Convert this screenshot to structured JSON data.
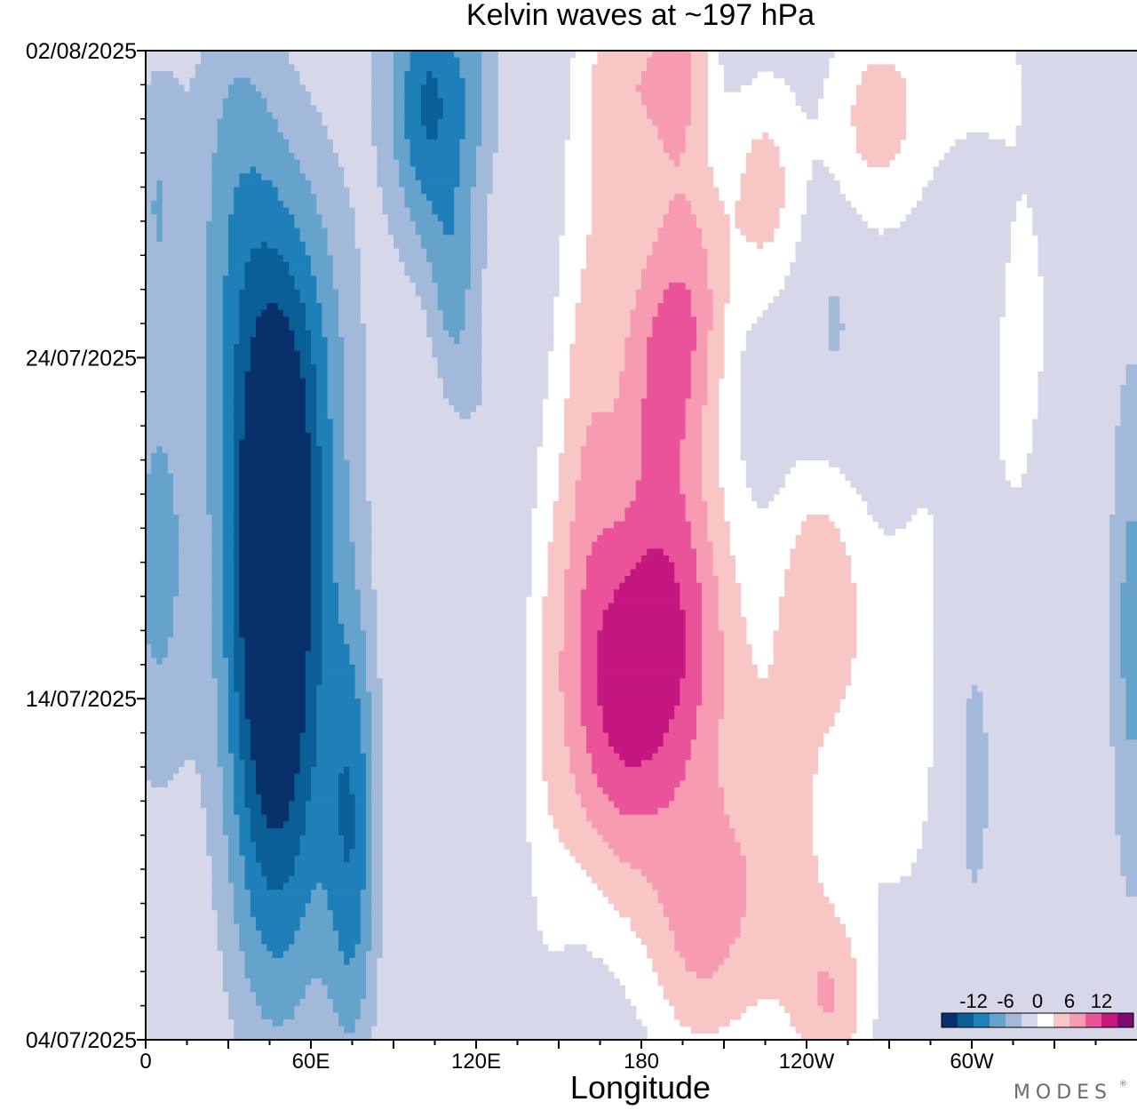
{
  "chart_data": {
    "type": "heatmap",
    "title": "Kelvin waves at ~197 hPa",
    "xlabel": "Longitude",
    "ylabel": "",
    "x_ticks": [
      "0",
      "60E",
      "120E",
      "180",
      "120W",
      "60W"
    ],
    "x_tick_values": [
      0,
      60,
      120,
      180,
      240,
      300
    ],
    "xlim": [
      0,
      360
    ],
    "y_ticks": [
      "04/07/2025",
      "14/07/2025",
      "24/07/2025",
      "02/08/2025"
    ],
    "y_tick_values": [
      "2025-07-04",
      "2025-07-14",
      "2025-07-24",
      "2025-08-02"
    ],
    "ylim": [
      "2025-07-04",
      "2025-08-02"
    ],
    "colorbar": {
      "labels": [
        "-12",
        "-6",
        "0",
        "6",
        "12"
      ],
      "label_values": [
        -12,
        -6,
        0,
        6,
        12
      ],
      "levels": [
        -15,
        -12,
        -9,
        -6,
        -3,
        3,
        6,
        9,
        12,
        15
      ],
      "colors": [
        "#08306b",
        "#0b5f97",
        "#1f7fb8",
        "#66a3cc",
        "#a3b9d9",
        "#d6d7e8",
        "#ffffff",
        "#f9c6c6",
        "#f69bb2",
        "#ea529a",
        "#c4177f",
        "#7a0d6d"
      ]
    },
    "field": {
      "background_level": 0,
      "structures": [
        {
          "type": "anomaly",
          "sign": "negative",
          "lon": [
            0,
            90
          ],
          "time": [
            "2025-07-04",
            "2025-08-02"
          ],
          "peak": -12
        },
        {
          "type": "anomaly",
          "sign": "negative",
          "lon": [
            80,
            120
          ],
          "time": [
            "2025-07-22",
            "2025-08-02"
          ],
          "peak": -10
        },
        {
          "type": "anomaly",
          "sign": "positive",
          "lon": [
            150,
            230
          ],
          "time": [
            "2025-07-04",
            "2025-07-22"
          ],
          "peak": 12
        },
        {
          "type": "anomaly",
          "sign": "positive",
          "lon": [
            140,
            330
          ],
          "time": [
            "2025-07-12",
            "2025-08-02"
          ],
          "peak": 8
        },
        {
          "type": "anomaly",
          "sign": "negative",
          "lon": [
            340,
            360
          ],
          "time": [
            "2025-07-04",
            "2025-07-18"
          ],
          "peak": -8
        }
      ]
    }
  },
  "branding": {
    "logo_text": "MODES"
  }
}
